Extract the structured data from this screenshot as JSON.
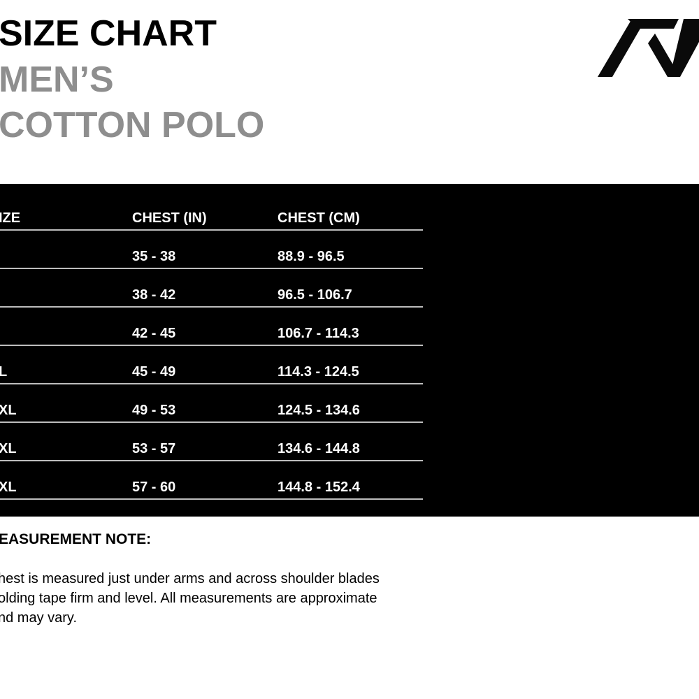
{
  "title": {
    "line1": "SIZE CHART",
    "line2": "MEN’S",
    "line3": "COTTON POLO"
  },
  "colors": {
    "band": "#000000",
    "subtitle": "#8e8e8e"
  },
  "logo": "A7 logo",
  "table": {
    "headers": [
      "IZE",
      "CHEST (IN)",
      "CHEST (CM)"
    ],
    "rows": [
      [
        "",
        "35 - 38",
        "88.9 - 96.5"
      ],
      [
        "",
        "38 - 42",
        "96.5 - 106.7"
      ],
      [
        "",
        "42 - 45",
        "106.7 - 114.3"
      ],
      [
        "L",
        "45 - 49",
        "114.3 - 124.5"
      ],
      [
        "XL",
        "49 - 53",
        "124.5 - 134.6"
      ],
      [
        "XL",
        "53 - 57",
        "134.6 - 144.8"
      ],
      [
        "XL",
        "57 - 60",
        "144.8 - 152.4"
      ]
    ]
  },
  "note": {
    "heading": "EASUREMENT NOTE:",
    "lines": [
      "hest is measured just under arms and across shoulder blades",
      "olding tape firm and level. All measurements are approximate",
      "nd may vary."
    ]
  }
}
